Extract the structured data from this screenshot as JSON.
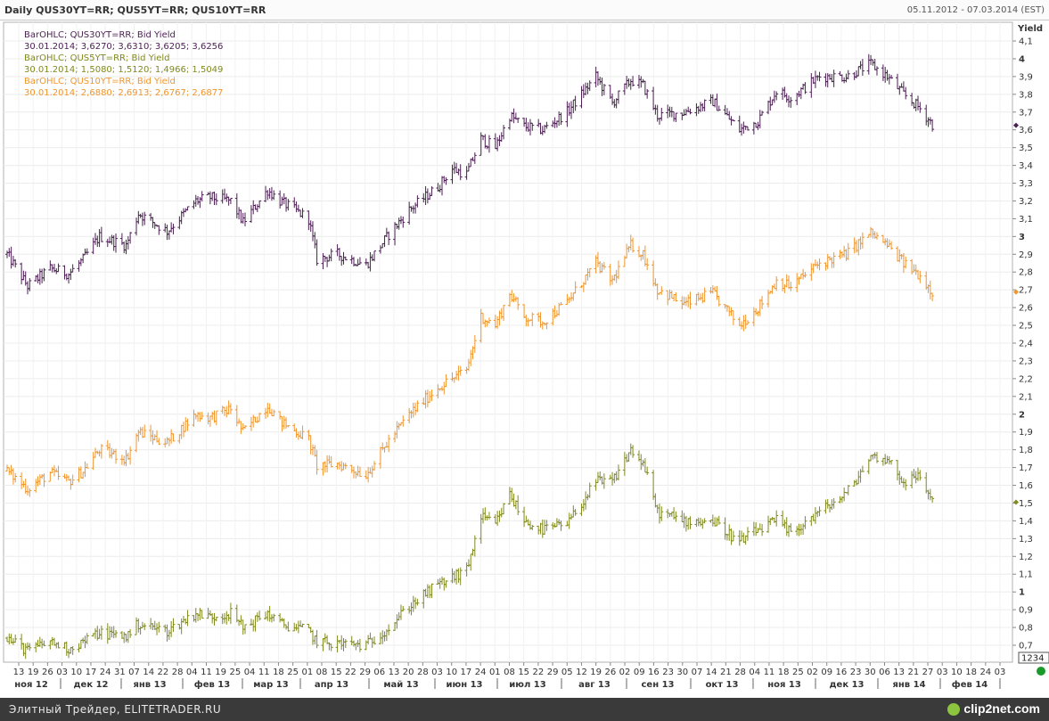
{
  "header": {
    "title": "Daily QUS30YT=RR; QUS5YT=RR; QUS10YT=RR",
    "date_range": "05.11.2012 - 07.03.2014 (EST)"
  },
  "legend": [
    {
      "name": "BarOHLC; QUS30YT=RR; Bid Yield",
      "values": "30.01.2014; 3,6270; 3,6310; 3,6205; 3,6256",
      "color": "#4b1f52"
    },
    {
      "name": "BarOHLC; QUS5YT=RR; Bid Yield",
      "values": "30.01.2014; 1,5080; 1,5120; 1,4966; 1,5049",
      "color": "#808a1e"
    },
    {
      "name": "BarOHLC; QUS10YT=RR; Bid Yield",
      "values": "30.01.2014; 2,6880; 2,6913; 2,6767; 2,6877",
      "color": "#f0962e"
    }
  ],
  "chart_data": {
    "type": "ohlc-bar",
    "ylabel": "Yield",
    "ylim": [
      0.65,
      4.15
    ],
    "y_ticks": [
      "4,1",
      "4",
      "3,9",
      "3,8",
      "3,7",
      "3,6",
      "3,5",
      "3,4",
      "3,3",
      "3,2",
      "3,1",
      "3",
      "2,9",
      "2,8",
      "2,7",
      "2,6",
      "2,5",
      "2,4",
      "2,3",
      "2,2",
      "2,1",
      "2",
      "1,9",
      "1,8",
      "1,7",
      "1,6",
      "1,5",
      "1,4",
      "1,3",
      "1,2",
      "1,1",
      "1",
      "0,9",
      "0,8",
      "0,7"
    ],
    "y_tick_values": [
      4.1,
      4.0,
      3.9,
      3.8,
      3.7,
      3.6,
      3.5,
      3.4,
      3.3,
      3.2,
      3.1,
      3.0,
      2.9,
      2.8,
      2.7,
      2.6,
      2.5,
      2.4,
      2.3,
      2.2,
      2.1,
      2.0,
      1.9,
      1.8,
      1.7,
      1.6,
      1.5,
      1.4,
      1.3,
      1.2,
      1.1,
      1.0,
      0.9,
      0.8,
      0.7
    ],
    "x_day_ticks": [
      "13",
      "19",
      "26",
      "03",
      "10",
      "17",
      "24",
      "31",
      "07",
      "14",
      "22",
      "28",
      "04",
      "11",
      "19",
      "25",
      "04",
      "11",
      "18",
      "25",
      "01",
      "08",
      "15",
      "22",
      "29",
      "06",
      "13",
      "20",
      "28",
      "03",
      "10",
      "17",
      "24",
      "01",
      "08",
      "15",
      "22",
      "29",
      "05",
      "12",
      "19",
      "26",
      "02",
      "09",
      "16",
      "23",
      "30",
      "07",
      "14",
      "21",
      "28",
      "04",
      "11",
      "18",
      "25",
      "02",
      "09",
      "16",
      "23",
      "30",
      "06",
      "13",
      "21",
      "27",
      "03",
      "10",
      "18",
      "24",
      "03"
    ],
    "x_month_labels": [
      "ноя 12",
      "дек 12",
      "янв 13",
      "фев 13",
      "мар 13",
      "апр 13",
      "май 13",
      "июн 13",
      "июл 13",
      "авг 13",
      "сен 13",
      "окт 13",
      "ноя 13",
      "дек 13",
      "янв 14",
      "фев 14"
    ],
    "x_range": [
      "05.11.2012",
      "07.03.2014"
    ],
    "cursor_label": "1234",
    "grid": true,
    "series": [
      {
        "name": "QUS30YT=RR",
        "color": "#4b1f52",
        "last": 3.6256,
        "keypoints": [
          [
            "2012-11-05",
            2.9
          ],
          [
            "2012-11-15",
            2.72
          ],
          [
            "2012-11-26",
            2.82
          ],
          [
            "2012-12-05",
            2.79
          ],
          [
            "2012-12-12",
            2.87
          ],
          [
            "2012-12-20",
            3.0
          ],
          [
            "2013-01-02",
            2.95
          ],
          [
            "2013-01-08",
            3.13
          ],
          [
            "2013-01-22",
            3.03
          ],
          [
            "2013-02-05",
            3.2
          ],
          [
            "2013-02-12",
            3.22
          ],
          [
            "2013-02-22",
            3.2
          ],
          [
            "2013-02-28",
            3.08
          ],
          [
            "2013-03-12",
            3.26
          ],
          [
            "2013-03-18",
            3.2
          ],
          [
            "2013-04-01",
            3.1
          ],
          [
            "2013-04-05",
            2.87
          ],
          [
            "2013-04-15",
            2.9
          ],
          [
            "2013-04-29",
            2.84
          ],
          [
            "2013-05-10",
            3.01
          ],
          [
            "2013-05-20",
            3.15
          ],
          [
            "2013-06-03",
            3.28
          ],
          [
            "2013-06-10",
            3.38
          ],
          [
            "2013-06-17",
            3.35
          ],
          [
            "2013-06-24",
            3.55
          ],
          [
            "2013-07-01",
            3.5
          ],
          [
            "2013-07-08",
            3.68
          ],
          [
            "2013-07-15",
            3.62
          ],
          [
            "2013-07-24",
            3.6
          ],
          [
            "2013-08-05",
            3.7
          ],
          [
            "2013-08-19",
            3.9
          ],
          [
            "2013-08-27",
            3.75
          ],
          [
            "2013-09-05",
            3.88
          ],
          [
            "2013-09-11",
            3.85
          ],
          [
            "2013-09-18",
            3.68
          ],
          [
            "2013-10-01",
            3.7
          ],
          [
            "2013-10-15",
            3.76
          ],
          [
            "2013-10-28",
            3.6
          ],
          [
            "2013-11-06",
            3.65
          ],
          [
            "2013-11-15",
            3.82
          ],
          [
            "2013-11-22",
            3.78
          ],
          [
            "2013-12-06",
            3.9
          ],
          [
            "2013-12-19",
            3.9
          ],
          [
            "2013-12-31",
            3.97
          ],
          [
            "2014-01-08",
            3.9
          ],
          [
            "2014-01-16",
            3.8
          ],
          [
            "2014-01-24",
            3.72
          ],
          [
            "2014-01-30",
            3.63
          ]
        ]
      },
      {
        "name": "QUS10YT=RR",
        "color": "#f0962e",
        "last": 2.6877,
        "keypoints": [
          [
            "2012-11-05",
            1.68
          ],
          [
            "2012-11-15",
            1.58
          ],
          [
            "2012-11-26",
            1.67
          ],
          [
            "2012-12-05",
            1.62
          ],
          [
            "2012-12-12",
            1.68
          ],
          [
            "2012-12-20",
            1.8
          ],
          [
            "2013-01-02",
            1.75
          ],
          [
            "2013-01-08",
            1.9
          ],
          [
            "2013-01-22",
            1.84
          ],
          [
            "2013-02-05",
            2.0
          ],
          [
            "2013-02-12",
            1.98
          ],
          [
            "2013-02-22",
            2.03
          ],
          [
            "2013-02-28",
            1.9
          ],
          [
            "2013-03-12",
            2.05
          ],
          [
            "2013-03-18",
            1.96
          ],
          [
            "2013-04-01",
            1.86
          ],
          [
            "2013-04-05",
            1.71
          ],
          [
            "2013-04-15",
            1.72
          ],
          [
            "2013-04-29",
            1.66
          ],
          [
            "2013-05-10",
            1.85
          ],
          [
            "2013-05-20",
            2.0
          ],
          [
            "2013-06-03",
            2.15
          ],
          [
            "2013-06-10",
            2.2
          ],
          [
            "2013-06-17",
            2.25
          ],
          [
            "2013-06-24",
            2.55
          ],
          [
            "2013-07-01",
            2.5
          ],
          [
            "2013-07-08",
            2.68
          ],
          [
            "2013-07-15",
            2.55
          ],
          [
            "2013-07-24",
            2.52
          ],
          [
            "2013-08-05",
            2.63
          ],
          [
            "2013-08-19",
            2.85
          ],
          [
            "2013-08-27",
            2.75
          ],
          [
            "2013-09-05",
            2.95
          ],
          [
            "2013-09-11",
            2.9
          ],
          [
            "2013-09-18",
            2.7
          ],
          [
            "2013-10-01",
            2.62
          ],
          [
            "2013-10-15",
            2.68
          ],
          [
            "2013-10-28",
            2.5
          ],
          [
            "2013-11-06",
            2.6
          ],
          [
            "2013-11-15",
            2.75
          ],
          [
            "2013-11-22",
            2.72
          ],
          [
            "2013-12-06",
            2.85
          ],
          [
            "2013-12-19",
            2.9
          ],
          [
            "2013-12-31",
            3.02
          ],
          [
            "2014-01-08",
            2.95
          ],
          [
            "2014-01-16",
            2.85
          ],
          [
            "2014-01-24",
            2.78
          ],
          [
            "2014-01-30",
            2.69
          ]
        ]
      },
      {
        "name": "QUS5YT=RR",
        "color": "#808a1e",
        "last": 1.5049,
        "keypoints": [
          [
            "2012-11-05",
            0.74
          ],
          [
            "2012-11-15",
            0.67
          ],
          [
            "2012-11-26",
            0.72
          ],
          [
            "2012-12-05",
            0.68
          ],
          [
            "2012-12-12",
            0.72
          ],
          [
            "2012-12-20",
            0.77
          ],
          [
            "2013-01-02",
            0.75
          ],
          [
            "2013-01-08",
            0.82
          ],
          [
            "2013-01-22",
            0.78
          ],
          [
            "2013-02-05",
            0.88
          ],
          [
            "2013-02-12",
            0.86
          ],
          [
            "2013-02-22",
            0.88
          ],
          [
            "2013-02-28",
            0.8
          ],
          [
            "2013-03-12",
            0.88
          ],
          [
            "2013-03-18",
            0.82
          ],
          [
            "2013-04-01",
            0.78
          ],
          [
            "2013-04-05",
            0.72
          ],
          [
            "2013-04-15",
            0.71
          ],
          [
            "2013-04-29",
            0.7
          ],
          [
            "2013-05-10",
            0.8
          ],
          [
            "2013-05-20",
            0.92
          ],
          [
            "2013-06-03",
            1.04
          ],
          [
            "2013-06-10",
            1.08
          ],
          [
            "2013-06-17",
            1.12
          ],
          [
            "2013-06-24",
            1.42
          ],
          [
            "2013-07-01",
            1.38
          ],
          [
            "2013-07-08",
            1.55
          ],
          [
            "2013-07-15",
            1.4
          ],
          [
            "2013-07-24",
            1.35
          ],
          [
            "2013-08-05",
            1.38
          ],
          [
            "2013-08-19",
            1.62
          ],
          [
            "2013-08-27",
            1.62
          ],
          [
            "2013-09-05",
            1.8
          ],
          [
            "2013-09-11",
            1.72
          ],
          [
            "2013-09-18",
            1.45
          ],
          [
            "2013-10-01",
            1.4
          ],
          [
            "2013-10-15",
            1.4
          ],
          [
            "2013-10-28",
            1.28
          ],
          [
            "2013-11-06",
            1.35
          ],
          [
            "2013-11-15",
            1.4
          ],
          [
            "2013-11-22",
            1.33
          ],
          [
            "2013-12-06",
            1.45
          ],
          [
            "2013-12-19",
            1.55
          ],
          [
            "2013-12-31",
            1.76
          ],
          [
            "2014-01-08",
            1.75
          ],
          [
            "2014-01-16",
            1.62
          ],
          [
            "2014-01-24",
            1.65
          ],
          [
            "2014-01-30",
            1.51
          ]
        ]
      }
    ]
  },
  "footer": {
    "text": "Элитный Трейдер, ELITETRADER.RU",
    "brand": "clip2net.com"
  }
}
